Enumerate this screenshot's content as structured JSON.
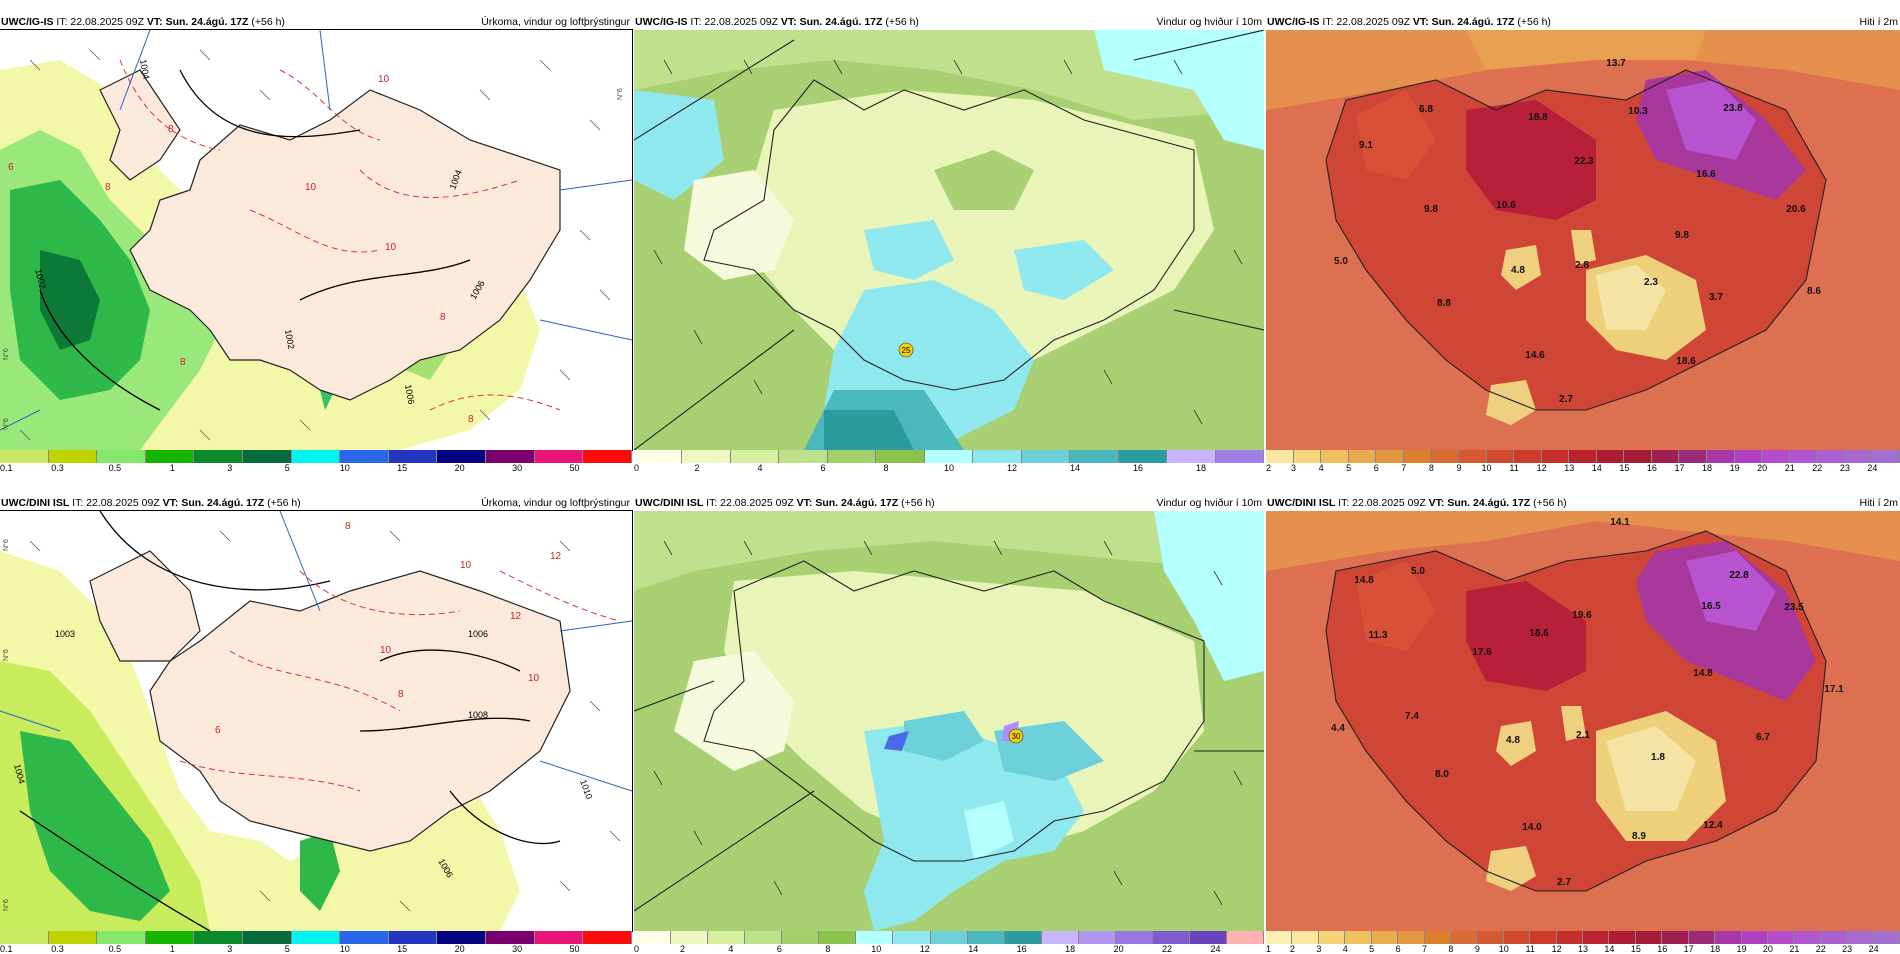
{
  "panels": [
    {
      "id": "p1",
      "model": "UWC/IG-IS",
      "it": "22.08.2025 09Z",
      "vt": "Sun. 24.ágú. 17Z",
      "lead": "(+56 h)",
      "title": "Úrkoma, vindur og loftþrýstingur",
      "type": "precip",
      "legend_colors": [
        "#cbe864",
        "#c0d200",
        "#86e86a",
        "#14b400",
        "#0b8a2c",
        "#066a3e",
        "#00f5f0",
        "#2a66e8",
        "#2236c0",
        "#040480",
        "#7a0070",
        "#e8147a",
        "#ff0a0a"
      ],
      "legend_labels": [
        "0.1",
        "0.3",
        "0.5",
        "1",
        "3",
        "5",
        "10",
        "15",
        "20",
        "30",
        "50"
      ],
      "map_labels": [
        "10",
        "8",
        "6",
        "8",
        "10",
        "10",
        "8",
        "8",
        "1004",
        "1002",
        "1002",
        "1004",
        "1006",
        "1006",
        "8"
      ],
      "axis_labels": [
        "N°6",
        "N°6",
        "N°6"
      ]
    },
    {
      "id": "p2",
      "model": "UWC/IG-IS",
      "it": "22.08.2025 09Z",
      "vt": "Sun. 24.ágú. 17Z",
      "lead": "(+56 h)",
      "title": "Vindur og hviður í 10m",
      "type": "wind",
      "legend_colors": [
        "#ffffea",
        "#eef8c0",
        "#d6eea0",
        "#bde08a",
        "#a4d06c",
        "#8cc24e",
        "#b4ffff",
        "#8ee8ee",
        "#6cd0d8",
        "#4ab8bc",
        "#2a9c9e",
        "#c8b4ff",
        "#a080e8"
      ],
      "legend_labels": [
        "0",
        "2",
        "4",
        "6",
        "8",
        "10",
        "12",
        "14",
        "16",
        "18"
      ],
      "map_labels": [
        "25"
      ]
    },
    {
      "id": "p3",
      "model": "UWC/IG-IS",
      "it": "22.08.2025 09Z",
      "vt": "Sun. 24.ágú. 17Z",
      "lead": "(+56 h)",
      "title": "Hiti í 2m",
      "type": "temp",
      "legend_colors": [
        "#fbe6a0",
        "#f5d47a",
        "#eec060",
        "#e8ac4c",
        "#e29640",
        "#dc8030",
        "#d86a34",
        "#d45a34",
        "#d04a30",
        "#cc3c2c",
        "#c42e2c",
        "#ba2430",
        "#b01c34",
        "#a61a3a",
        "#a01e50",
        "#9c2a78",
        "#a838a8",
        "#b040c0",
        "#b44ccc",
        "#b056cf",
        "#ac60d0",
        "#a86ad0",
        "#a470d0"
      ],
      "legend_labels": [
        "2",
        "3",
        "4",
        "5",
        "6",
        "7",
        "8",
        "9",
        "10",
        "11",
        "12",
        "13",
        "14",
        "15",
        "16",
        "17",
        "18",
        "19",
        "20",
        "21",
        "22",
        "23",
        "24"
      ],
      "map_labels": [
        "13.7",
        "6.8",
        "9.1",
        "10.3",
        "18.8",
        "23.8",
        "22.3",
        "16.6",
        "9.8",
        "10.6",
        "20.6",
        "9.8",
        "5.0",
        "4.8",
        "2.8",
        "2.3",
        "3.7",
        "8.6",
        "8.8",
        "14.6",
        "18.6",
        "2.7"
      ]
    },
    {
      "id": "p4",
      "model": "UWC/DINI ISL",
      "it": "22.08.2025 09Z",
      "vt": "Sun. 24.ágú. 17Z",
      "lead": "(+56 h)",
      "title": "Úrkoma, vindur og loftþrýstingur",
      "type": "precip",
      "legend_colors": [
        "#cbe864",
        "#c0d200",
        "#86e86a",
        "#14b400",
        "#0b8a2c",
        "#066a3e",
        "#00f5f0",
        "#2a66e8",
        "#2236c0",
        "#040480",
        "#7a0070",
        "#e8147a",
        "#ff0a0a"
      ],
      "legend_labels": [
        "0.1",
        "0.3",
        "0.5",
        "1",
        "3",
        "5",
        "10",
        "15",
        "20",
        "30",
        "50"
      ],
      "map_labels": [
        "8",
        "10",
        "12",
        "12",
        "1003",
        "1006",
        "10",
        "1008",
        "10",
        "6",
        "8",
        "1004",
        "1006",
        "1010"
      ],
      "axis_labels": [
        "N°6",
        "N°6",
        "N°6"
      ]
    },
    {
      "id": "p5",
      "model": "UWC/DINI ISL",
      "it": "22.08.2025 09Z",
      "vt": "Sun. 24.ágú. 17Z",
      "lead": "(+56 h)",
      "title": "Vindur og hviður í 10m",
      "type": "wind",
      "legend_colors": [
        "#ffffea",
        "#eef8c0",
        "#d6eea0",
        "#bde08a",
        "#a4d06c",
        "#8cc24e",
        "#b4ffff",
        "#8ee8ee",
        "#6cd0d8",
        "#4ab8bc",
        "#2a9c9e",
        "#c8b4ff",
        "#b096f0",
        "#9878e0",
        "#7e5cd0",
        "#6a44c0",
        "#ffb0b0"
      ],
      "legend_labels": [
        "0",
        "2",
        "4",
        "6",
        "8",
        "10",
        "12",
        "14",
        "16",
        "18",
        "20",
        "22",
        "24"
      ],
      "map_labels": [
        "30"
      ]
    },
    {
      "id": "p6",
      "model": "UWC/DINI ISL",
      "it": "22.08.2025 09Z",
      "vt": "Sun. 24.ágú. 17Z",
      "lead": "(+56 h)",
      "title": "Hiti í 2m",
      "type": "temp",
      "legend_colors": [
        "#fbf0b4",
        "#fbe6a0",
        "#f5d47a",
        "#eec060",
        "#e8ac4c",
        "#e29640",
        "#dc8030",
        "#d86a34",
        "#d45a34",
        "#d04a30",
        "#cc3c2c",
        "#c42e2c",
        "#ba2430",
        "#b01c34",
        "#a61a3a",
        "#a01e50",
        "#9c2a78",
        "#a838a8",
        "#b040c0",
        "#b44ccc",
        "#b056cf",
        "#ac60d0",
        "#a86ad0",
        "#a470d0"
      ],
      "legend_labels": [
        "1",
        "2",
        "3",
        "4",
        "5",
        "6",
        "7",
        "8",
        "9",
        "10",
        "11",
        "12",
        "13",
        "14",
        "15",
        "16",
        "17",
        "18",
        "19",
        "20",
        "21",
        "22",
        "23",
        "24"
      ],
      "map_labels": [
        "14.1",
        "14.8",
        "5.0",
        "11.3",
        "22.8",
        "23.5",
        "16.5",
        "19.6",
        "18.6",
        "17.6",
        "14.8",
        "17.1",
        "7.4",
        "4.4",
        "4.8",
        "2.1",
        "1.8",
        "6.7",
        "8.0",
        "14.0",
        "8.9",
        "12.4",
        "2.7"
      ]
    }
  ]
}
